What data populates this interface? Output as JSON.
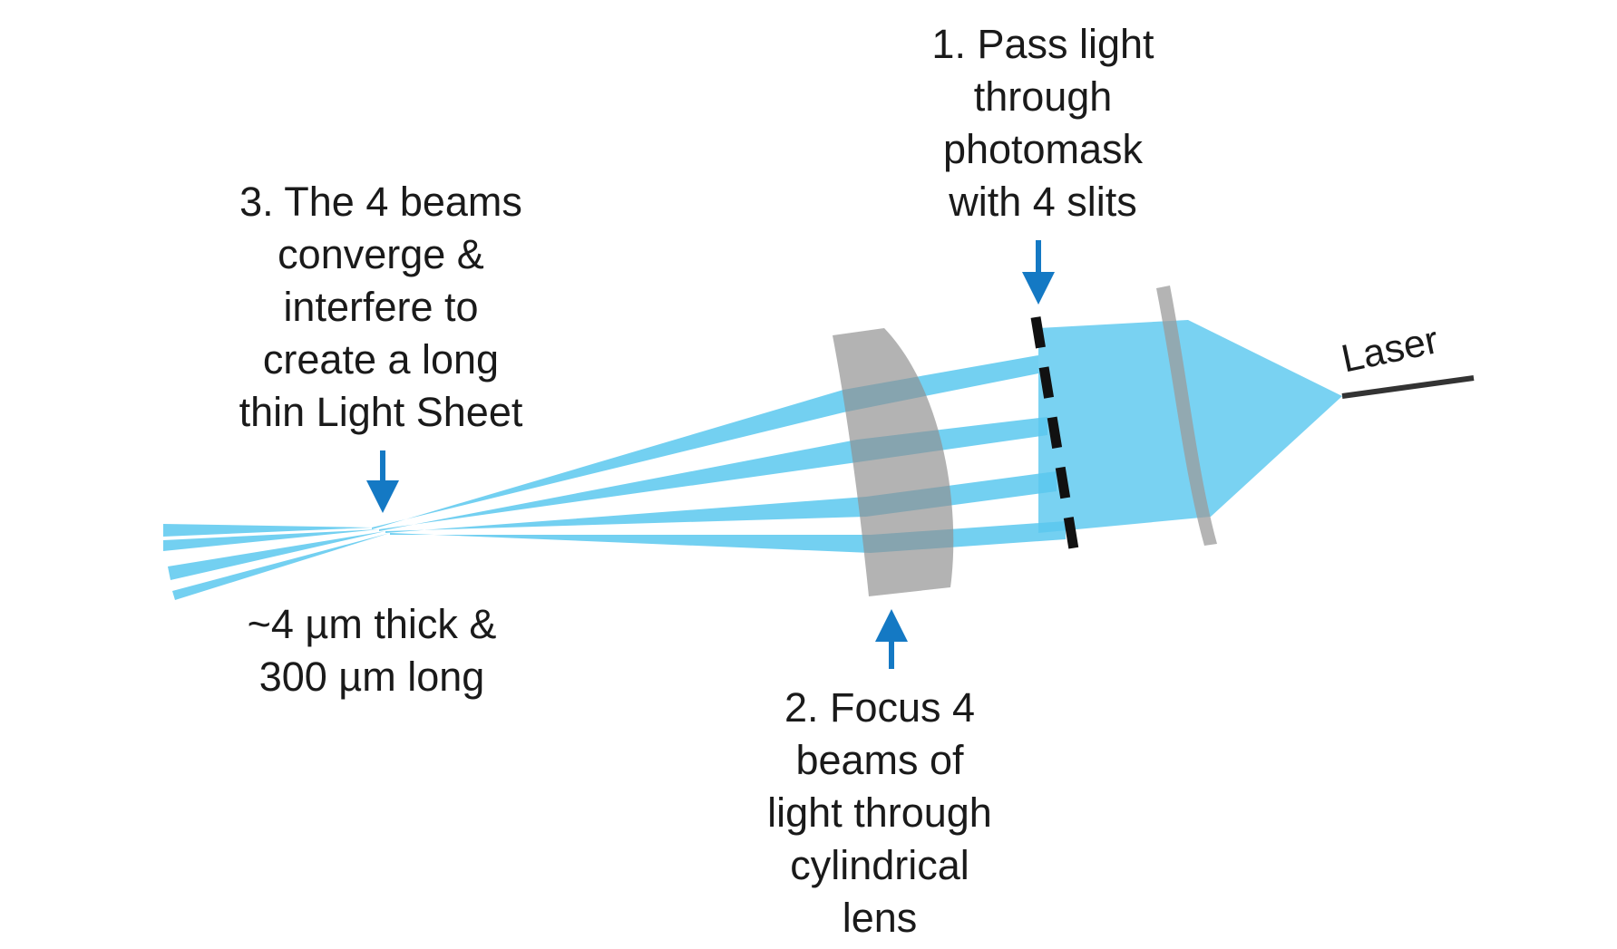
{
  "labels": {
    "step1": [
      "1. Pass light",
      "through",
      "photomask",
      "with 4 slits"
    ],
    "step2": [
      "2. Focus 4",
      "beams of",
      "light through",
      "cylindrical",
      "lens"
    ],
    "step3": [
      "3. The 4 beams",
      "converge &",
      "interfere to",
      "create a long",
      "thin Light Sheet"
    ],
    "dimensions": [
      "~4 µm thick &",
      "300 µm long"
    ],
    "laser": "Laser"
  },
  "colors": {
    "beam": "#5bc8ef",
    "lens": "#9b9b9b",
    "mask": "#111111",
    "arrow": "#1479c4",
    "laser_line": "#333333"
  }
}
